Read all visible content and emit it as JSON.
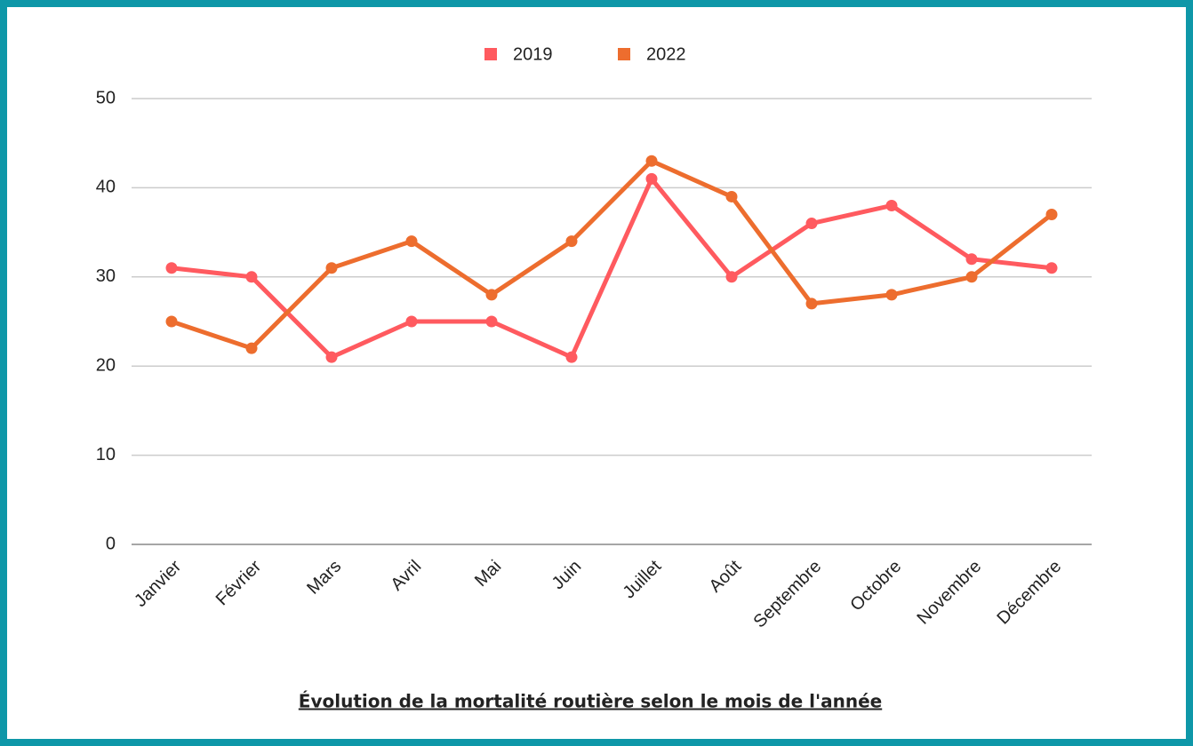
{
  "chart_data": {
    "type": "line",
    "title": "Évolution de la mortalité routière selon le mois de l'année",
    "categories": [
      "Janvier",
      "Février",
      "Mars",
      "Avril",
      "Mai",
      "Juin",
      "Juillet",
      "Août",
      "Septembre",
      "Octobre",
      "Novembre",
      "Décembre"
    ],
    "series": [
      {
        "name": "2019",
        "color": "#ff5a5f",
        "values": [
          31,
          30,
          21,
          25,
          25,
          21,
          41,
          30,
          36,
          38,
          32,
          31
        ]
      },
      {
        "name": "2022",
        "color": "#ed6d2e",
        "values": [
          25,
          22,
          31,
          34,
          28,
          34,
          43,
          39,
          27,
          28,
          30,
          37
        ]
      }
    ],
    "ylim": [
      0,
      50
    ],
    "yticks": [
      0,
      10,
      20,
      30,
      40,
      50
    ],
    "grid": true,
    "legend": "top"
  }
}
